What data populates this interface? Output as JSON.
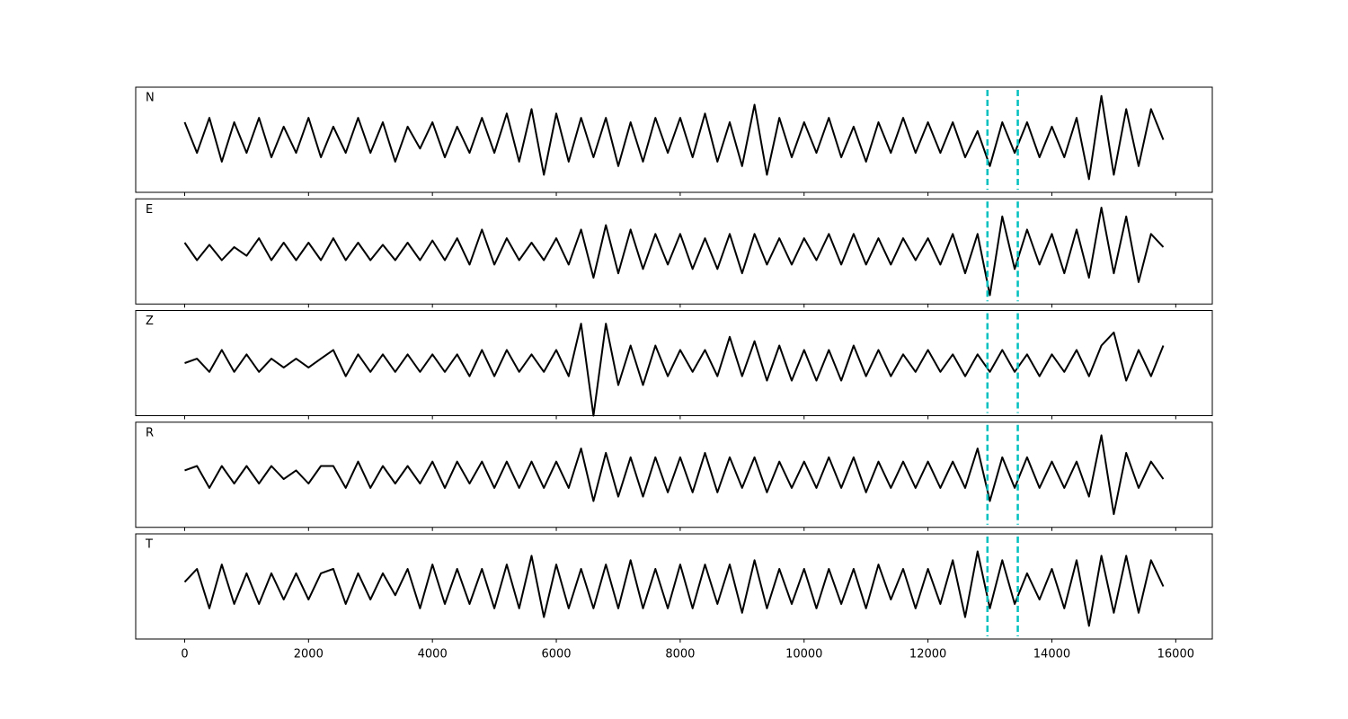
{
  "chart_data": {
    "type": "line",
    "x": [
      0,
      200,
      400,
      600,
      800,
      1000,
      1200,
      1400,
      1600,
      1800,
      2000,
      2200,
      2400,
      2600,
      2800,
      3000,
      3200,
      3400,
      3600,
      3800,
      4000,
      4200,
      4400,
      4600,
      4800,
      5000,
      5200,
      5400,
      5600,
      5800,
      6000,
      6200,
      6400,
      6600,
      6800,
      7000,
      7200,
      7400,
      7600,
      7800,
      8000,
      8200,
      8400,
      8600,
      8800,
      9000,
      9200,
      9400,
      9600,
      9800,
      10000,
      10200,
      10400,
      10600,
      10800,
      11000,
      11200,
      11400,
      11600,
      11800,
      12000,
      12200,
      12400,
      12600,
      12800,
      13000,
      13200,
      13400,
      13600,
      13800,
      14000,
      14200,
      14400,
      14600,
      14800,
      15000,
      15200,
      15400,
      15600,
      15800
    ],
    "series": [
      {
        "name": "N",
        "color": "#000000",
        "values": [
          0.4,
          -0.3,
          0.5,
          -0.5,
          0.4,
          -0.3,
          0.5,
          -0.4,
          0.3,
          -0.3,
          0.5,
          -0.4,
          0.3,
          -0.3,
          0.5,
          -0.3,
          0.4,
          -0.5,
          0.3,
          -0.2,
          0.4,
          -0.4,
          0.3,
          -0.3,
          0.5,
          -0.3,
          0.6,
          -0.5,
          0.7,
          -0.8,
          0.6,
          -0.5,
          0.5,
          -0.4,
          0.5,
          -0.6,
          0.4,
          -0.5,
          0.5,
          -0.3,
          0.5,
          -0.4,
          0.6,
          -0.5,
          0.4,
          -0.6,
          0.8,
          -0.8,
          0.5,
          -0.4,
          0.4,
          -0.3,
          0.5,
          -0.4,
          0.3,
          -0.5,
          0.4,
          -0.3,
          0.5,
          -0.3,
          0.4,
          -0.3,
          0.4,
          -0.4,
          0.2,
          -0.6,
          0.4,
          -0.3,
          0.4,
          -0.4,
          0.3,
          -0.4,
          0.5,
          -0.9,
          1.0,
          -0.8,
          0.7,
          -0.6,
          0.7,
          0.0
        ]
      },
      {
        "name": "E",
        "color": "#000000",
        "values": [
          0.2,
          -0.2,
          0.15,
          -0.2,
          0.1,
          -0.1,
          0.3,
          -0.2,
          0.2,
          -0.2,
          0.2,
          -0.2,
          0.3,
          -0.2,
          0.2,
          -0.2,
          0.15,
          -0.2,
          0.2,
          -0.2,
          0.25,
          -0.2,
          0.3,
          -0.3,
          0.5,
          -0.3,
          0.3,
          -0.2,
          0.2,
          -0.2,
          0.3,
          -0.3,
          0.5,
          -0.6,
          0.6,
          -0.5,
          0.5,
          -0.4,
          0.4,
          -0.3,
          0.4,
          -0.4,
          0.3,
          -0.4,
          0.4,
          -0.5,
          0.4,
          -0.3,
          0.3,
          -0.3,
          0.3,
          -0.2,
          0.4,
          -0.3,
          0.4,
          -0.3,
          0.3,
          -0.3,
          0.3,
          -0.2,
          0.3,
          -0.3,
          0.4,
          -0.5,
          0.4,
          -1.0,
          0.8,
          -0.4,
          0.5,
          -0.3,
          0.4,
          -0.5,
          0.5,
          -0.6,
          1.0,
          -0.5,
          0.8,
          -0.7,
          0.4,
          0.1
        ]
      },
      {
        "name": "Z",
        "color": "#000000",
        "values": [
          0.0,
          0.1,
          -0.2,
          0.3,
          -0.2,
          0.2,
          -0.2,
          0.1,
          -0.1,
          0.1,
          -0.1,
          0.1,
          0.3,
          -0.3,
          0.2,
          -0.2,
          0.2,
          -0.2,
          0.2,
          -0.2,
          0.2,
          -0.2,
          0.2,
          -0.3,
          0.3,
          -0.3,
          0.3,
          -0.2,
          0.2,
          -0.2,
          0.3,
          -0.3,
          0.9,
          -1.2,
          0.9,
          -0.5,
          0.4,
          -0.5,
          0.4,
          -0.3,
          0.3,
          -0.2,
          0.3,
          -0.3,
          0.6,
          -0.3,
          0.5,
          -0.4,
          0.4,
          -0.4,
          0.3,
          -0.4,
          0.3,
          -0.4,
          0.4,
          -0.3,
          0.3,
          -0.3,
          0.2,
          -0.2,
          0.3,
          -0.2,
          0.2,
          -0.3,
          0.2,
          -0.2,
          0.3,
          -0.2,
          0.2,
          -0.3,
          0.2,
          -0.2,
          0.3,
          -0.3,
          0.4,
          0.7,
          -0.4,
          0.3,
          -0.3,
          0.4
        ]
      },
      {
        "name": "R",
        "color": "#000000",
        "values": [
          0.1,
          0.2,
          -0.3,
          0.2,
          -0.2,
          0.2,
          -0.2,
          0.2,
          -0.1,
          0.1,
          -0.2,
          0.2,
          0.2,
          -0.3,
          0.3,
          -0.3,
          0.2,
          -0.2,
          0.2,
          -0.2,
          0.3,
          -0.3,
          0.3,
          -0.2,
          0.3,
          -0.3,
          0.3,
          -0.3,
          0.3,
          -0.3,
          0.3,
          -0.3,
          0.6,
          -0.6,
          0.5,
          -0.5,
          0.4,
          -0.5,
          0.4,
          -0.4,
          0.4,
          -0.4,
          0.5,
          -0.4,
          0.4,
          -0.3,
          0.4,
          -0.4,
          0.3,
          -0.3,
          0.3,
          -0.3,
          0.4,
          -0.3,
          0.4,
          -0.4,
          0.3,
          -0.3,
          0.3,
          -0.3,
          0.3,
          -0.3,
          0.3,
          -0.3,
          0.6,
          -0.6,
          0.4,
          -0.3,
          0.4,
          -0.3,
          0.3,
          -0.3,
          0.3,
          -0.5,
          0.9,
          -0.9,
          0.5,
          -0.3,
          0.3,
          -0.1
        ]
      },
      {
        "name": "T",
        "color": "#000000",
        "values": [
          0.1,
          0.4,
          -0.5,
          0.5,
          -0.4,
          0.3,
          -0.4,
          0.3,
          -0.3,
          0.3,
          -0.3,
          0.3,
          0.4,
          -0.4,
          0.3,
          -0.3,
          0.3,
          -0.2,
          0.4,
          -0.5,
          0.5,
          -0.4,
          0.4,
          -0.4,
          0.4,
          -0.5,
          0.5,
          -0.5,
          0.7,
          -0.7,
          0.5,
          -0.5,
          0.4,
          -0.5,
          0.5,
          -0.5,
          0.6,
          -0.5,
          0.4,
          -0.5,
          0.5,
          -0.5,
          0.5,
          -0.4,
          0.5,
          -0.6,
          0.6,
          -0.5,
          0.4,
          -0.4,
          0.4,
          -0.5,
          0.4,
          -0.4,
          0.4,
          -0.5,
          0.5,
          -0.3,
          0.4,
          -0.5,
          0.4,
          -0.4,
          0.6,
          -0.7,
          0.8,
          -0.5,
          0.6,
          -0.4,
          0.3,
          -0.3,
          0.4,
          -0.5,
          0.6,
          -0.9,
          0.7,
          -0.6,
          0.7,
          -0.6,
          0.6,
          0.0
        ]
      }
    ],
    "vlines": {
      "x": [
        12960,
        13450
      ],
      "color": "#00bfbf",
      "style": "dashed"
    },
    "xlim": [
      -790,
      16590
    ],
    "xticks": [
      0,
      2000,
      4000,
      6000,
      8000,
      10000,
      12000,
      14000,
      16000
    ],
    "ylim": [
      -1.2,
      1.2
    ]
  }
}
